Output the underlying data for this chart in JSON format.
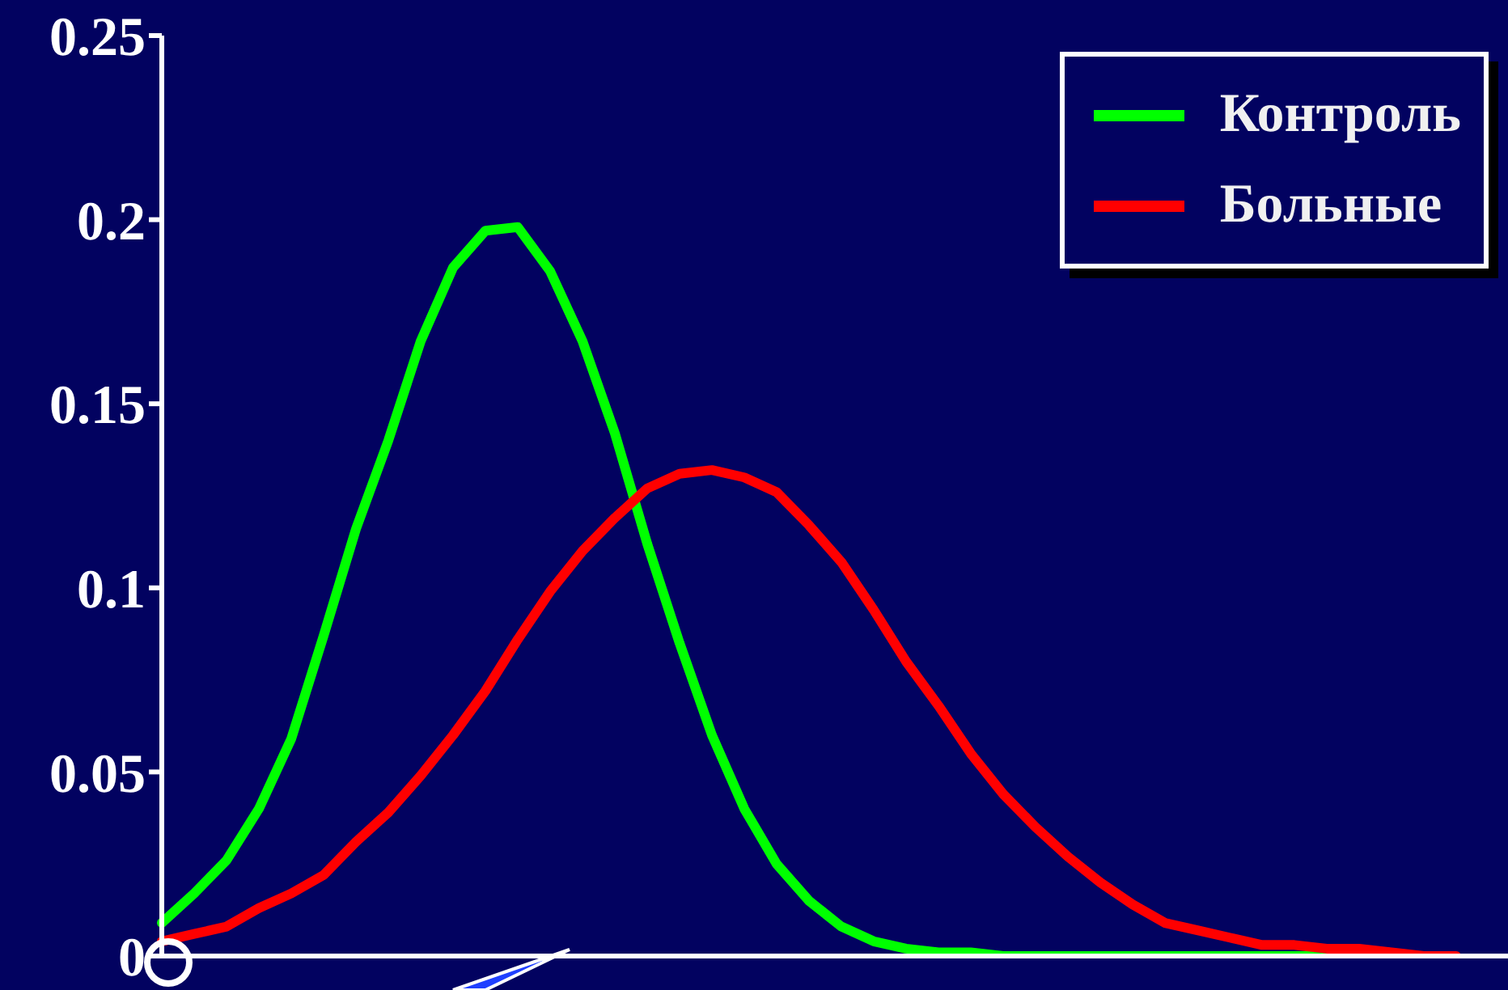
{
  "chart_data": {
    "type": "line",
    "categories": [
      null,
      null,
      null,
      null,
      null,
      null,
      null,
      null,
      null,
      null,
      null,
      null,
      null,
      null,
      null,
      null,
      null,
      null,
      null,
      null,
      null,
      null,
      null,
      null,
      null,
      null,
      null,
      null,
      null,
      null,
      null,
      null,
      null,
      null,
      null,
      null,
      null,
      null,
      null,
      null,
      null
    ],
    "series": [
      {
        "name": "Контроль",
        "color": "#00ff00",
        "values": [
          0.009,
          0.017,
          0.026,
          0.04,
          0.059,
          0.087,
          0.116,
          0.14,
          0.167,
          0.187,
          0.197,
          0.198,
          0.186,
          0.167,
          0.142,
          0.112,
          0.085,
          0.06,
          0.04,
          0.025,
          0.015,
          0.008,
          0.004,
          0.002,
          0.001,
          0.001,
          0,
          0,
          0,
          0,
          0,
          0,
          0,
          0,
          0,
          0,
          0,
          0,
          null,
          null,
          null
        ]
      },
      {
        "name": "Больные",
        "color": "#ff0000",
        "values": [
          0.004,
          0.006,
          0.008,
          0.013,
          0.017,
          0.022,
          0.031,
          0.039,
          0.049,
          0.06,
          0.072,
          0.086,
          0.099,
          0.11,
          0.119,
          0.127,
          0.131,
          0.132,
          0.13,
          0.126,
          0.117,
          0.107,
          0.094,
          0.08,
          0.068,
          0.055,
          0.044,
          0.035,
          0.027,
          0.02,
          0.014,
          0.009,
          0.007,
          0.005,
          0.003,
          0.003,
          0.002,
          0.002,
          0.001,
          0,
          0
        ]
      }
    ],
    "ylim": [
      0,
      0.25
    ],
    "yticks": [
      0,
      0.05,
      0.1,
      0.15,
      0.2,
      0.25
    ],
    "grid": false,
    "legend": "top right",
    "marker": "none",
    "line_style": "solid"
  }
}
